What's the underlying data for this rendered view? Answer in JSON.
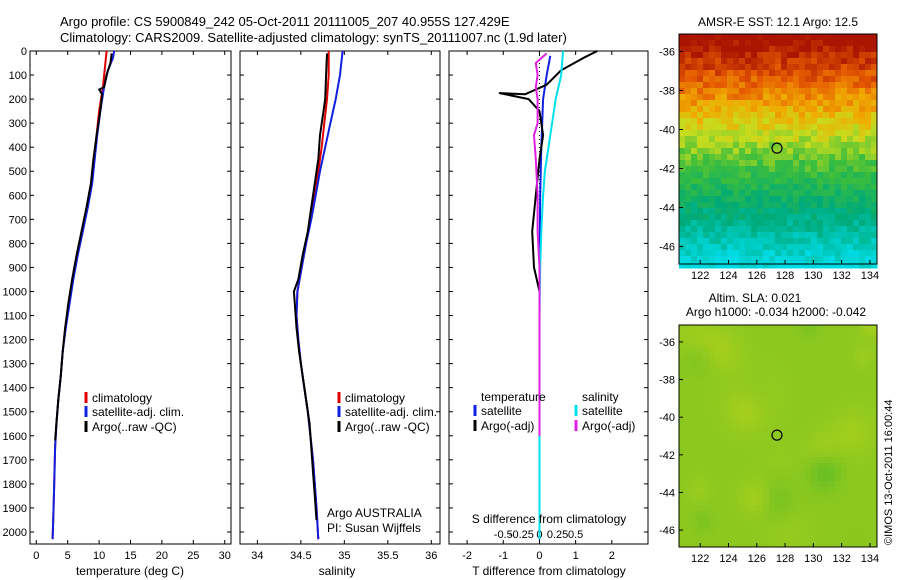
{
  "header": {
    "line1": "Argo profile: CS 5900849_242 05-Oct-2011 20111005_207 40.955S 127.429E",
    "line2": "Climatology: CARS2009. Satellite-adjusted climatology: synTS_20111007.nc (1.9d later)"
  },
  "colors": {
    "climatology": "#e00000",
    "satellite": "#1020e0",
    "argo": "#000000",
    "satellite_salinity": "#00e0f0",
    "argo_salinity": "#e020e0"
  },
  "chart_data": [
    {
      "type": "line",
      "name": "temperature-profile",
      "xlabel": "temperature (deg C)",
      "xlim": [
        -1,
        31
      ],
      "xticks": [
        0,
        5,
        10,
        15,
        20,
        25,
        30
      ],
      "ylim": [
        0,
        2050
      ],
      "yticks": [
        0,
        100,
        200,
        300,
        400,
        500,
        600,
        700,
        800,
        900,
        1000,
        1100,
        1200,
        1300,
        1400,
        1500,
        1600,
        1700,
        1800,
        1900,
        2000
      ],
      "legend": [
        "climatology",
        "satellite-adj. clim.",
        "Argo(..raw -QC)"
      ],
      "legend_position": "lower-middle",
      "series": [
        {
          "name": "climatology",
          "color": "#e00000",
          "points": [
            [
              11.2,
              0
            ],
            [
              11.0,
              50
            ],
            [
              10.6,
              150
            ],
            [
              10.0,
              250
            ],
            [
              9.6,
              350
            ],
            [
              9.2,
              450
            ],
            [
              8.8,
              550
            ],
            [
              8.1,
              650
            ],
            [
              7.3,
              750
            ],
            [
              6.5,
              850
            ],
            [
              5.8,
              950
            ],
            [
              5.2,
              1050
            ],
            [
              4.6,
              1150
            ],
            [
              4.2,
              1250
            ],
            [
              3.9,
              1350
            ],
            [
              3.5,
              1450
            ],
            [
              3.2,
              1550
            ],
            [
              3.0,
              1650
            ],
            [
              2.9,
              1750
            ],
            [
              2.8,
              1850
            ],
            [
              2.7,
              1950
            ],
            [
              2.6,
              2030
            ]
          ]
        },
        {
          "name": "satellite-adj. clim.",
          "color": "#1020e0",
          "points": [
            [
              12.4,
              0
            ],
            [
              12.2,
              30
            ],
            [
              11.4,
              80
            ],
            [
              10.8,
              150
            ],
            [
              10.2,
              250
            ],
            [
              9.7,
              350
            ],
            [
              9.3,
              450
            ],
            [
              8.9,
              550
            ],
            [
              8.2,
              650
            ],
            [
              7.4,
              750
            ],
            [
              6.6,
              850
            ],
            [
              5.9,
              950
            ],
            [
              5.3,
              1050
            ],
            [
              4.7,
              1150
            ],
            [
              4.2,
              1250
            ],
            [
              3.9,
              1350
            ],
            [
              3.5,
              1450
            ],
            [
              3.2,
              1550
            ],
            [
              3.0,
              1650
            ],
            [
              2.9,
              1750
            ],
            [
              2.8,
              1850
            ],
            [
              2.7,
              1950
            ],
            [
              2.6,
              2030
            ]
          ]
        },
        {
          "name": "Argo(..raw -QC)",
          "color": "#000000",
          "points": [
            [
              12.0,
              10
            ],
            [
              11.8,
              50
            ],
            [
              11.2,
              100
            ],
            [
              10.8,
              150
            ],
            [
              10.0,
              160
            ],
            [
              10.5,
              180
            ],
            [
              10.2,
              250
            ],
            [
              9.6,
              350
            ],
            [
              9.1,
              450
            ],
            [
              8.7,
              550
            ],
            [
              8.0,
              650
            ],
            [
              7.2,
              750
            ],
            [
              6.4,
              850
            ],
            [
              5.7,
              950
            ],
            [
              5.1,
              1050
            ],
            [
              4.6,
              1150
            ],
            [
              4.2,
              1250
            ],
            [
              3.9,
              1350
            ],
            [
              3.5,
              1450
            ],
            [
              3.2,
              1550
            ],
            [
              3.0,
              1620
            ]
          ]
        }
      ]
    },
    {
      "type": "line",
      "name": "salinity-profile",
      "xlabel": "salinity",
      "xlim": [
        33.8,
        36.1
      ],
      "xticks": [
        34,
        34.5,
        35,
        35.5,
        36
      ],
      "ylim": [
        0,
        2050
      ],
      "legend": [
        "climatology",
        "satellite-adj. clim.",
        "Argo(..raw -QC)"
      ],
      "legend_position": "lower-right",
      "annotation": [
        "Argo AUSTRALIA",
        "PI: Susan Wijffels"
      ],
      "series": [
        {
          "name": "climatology",
          "color": "#e00000",
          "points": [
            [
              34.82,
              0
            ],
            [
              34.82,
              100
            ],
            [
              34.8,
              200
            ],
            [
              34.77,
              300
            ],
            [
              34.74,
              400
            ],
            [
              34.7,
              500
            ],
            [
              34.66,
              600
            ],
            [
              34.61,
              700
            ],
            [
              34.56,
              800
            ],
            [
              34.51,
              900
            ],
            [
              34.46,
              1000
            ],
            [
              34.45,
              1100
            ],
            [
              34.47,
              1200
            ],
            [
              34.5,
              1300
            ],
            [
              34.54,
              1400
            ],
            [
              34.58,
              1500
            ],
            [
              34.61,
              1600
            ],
            [
              34.64,
              1700
            ],
            [
              34.66,
              1800
            ],
            [
              34.68,
              1900
            ],
            [
              34.7,
              2030
            ]
          ]
        },
        {
          "name": "satellite-adj. clim.",
          "color": "#1020e0",
          "points": [
            [
              34.98,
              0
            ],
            [
              34.95,
              100
            ],
            [
              34.9,
              200
            ],
            [
              34.84,
              300
            ],
            [
              34.78,
              400
            ],
            [
              34.72,
              500
            ],
            [
              34.67,
              600
            ],
            [
              34.62,
              700
            ],
            [
              34.56,
              800
            ],
            [
              34.51,
              900
            ],
            [
              34.46,
              1000
            ],
            [
              34.45,
              1100
            ],
            [
              34.47,
              1200
            ],
            [
              34.5,
              1300
            ],
            [
              34.54,
              1400
            ],
            [
              34.58,
              1500
            ],
            [
              34.61,
              1600
            ],
            [
              34.64,
              1700
            ],
            [
              34.66,
              1800
            ],
            [
              34.68,
              1900
            ],
            [
              34.7,
              2030
            ]
          ]
        },
        {
          "name": "Argo(..raw -QC)",
          "color": "#000000",
          "points": [
            [
              34.8,
              10
            ],
            [
              34.79,
              100
            ],
            [
              34.78,
              200
            ],
            [
              34.76,
              250
            ],
            [
              34.72,
              350
            ],
            [
              34.7,
              450
            ],
            [
              34.66,
              550
            ],
            [
              34.62,
              650
            ],
            [
              34.58,
              750
            ],
            [
              34.52,
              850
            ],
            [
              34.47,
              950
            ],
            [
              34.42,
              1000
            ],
            [
              34.43,
              1050
            ],
            [
              34.45,
              1150
            ],
            [
              34.48,
              1250
            ],
            [
              34.52,
              1350
            ],
            [
              34.56,
              1450
            ],
            [
              34.6,
              1550
            ],
            [
              34.62,
              1650
            ],
            [
              34.64,
              1750
            ],
            [
              34.66,
              1850
            ],
            [
              34.68,
              1950
            ]
          ]
        }
      ]
    },
    {
      "type": "line",
      "name": "difference-profile",
      "xlabel": "T difference from climatology",
      "xlabel2": "S difference from climatology",
      "xlim": [
        -2.5,
        3.0
      ],
      "xticks": [
        -2,
        -1,
        0,
        1,
        2
      ],
      "xticks_top": [
        -0.5,
        -0.25,
        0,
        0.25,
        0.5
      ],
      "ylim": [
        0,
        2050
      ],
      "legend": [
        "temperature",
        "satellite",
        "Argo(-adj)",
        "salinity",
        "satellite",
        "Argo(-adj)"
      ],
      "legend_position": "lower",
      "series": [
        {
          "name": "temperature satellite",
          "color": "#1020e0",
          "points": [
            [
              0.3,
              20
            ],
            [
              0.2,
              100
            ],
            [
              0.1,
              200
            ],
            [
              0.05,
              400
            ],
            [
              0.02,
              600
            ],
            [
              0.0,
              900
            ],
            [
              0.0,
              1100
            ],
            [
              0.0,
              1500
            ],
            [
              0.0,
              2030
            ]
          ]
        },
        {
          "name": "temperature Argo(-adj)",
          "color": "#000000",
          "points": [
            [
              1.6,
              0
            ],
            [
              1.2,
              30
            ],
            [
              0.6,
              80
            ],
            [
              0.2,
              140
            ],
            [
              -0.4,
              180
            ],
            [
              -1.1,
              175
            ],
            [
              -0.3,
              200
            ],
            [
              0.0,
              250
            ],
            [
              0.1,
              350
            ],
            [
              0.0,
              450
            ],
            [
              -0.1,
              600
            ],
            [
              -0.2,
              750
            ],
            [
              -0.15,
              900
            ],
            [
              0.0,
              1000
            ],
            [
              0.0,
              1200
            ],
            [
              0.0,
              1400
            ],
            [
              0.0,
              1600
            ]
          ]
        },
        {
          "name": "salinity satellite",
          "color": "#00e0f0",
          "points": [
            [
              0.65,
              0
            ],
            [
              0.6,
              100
            ],
            [
              0.45,
              200
            ],
            [
              0.35,
              300
            ],
            [
              0.25,
              400
            ],
            [
              0.15,
              500
            ],
            [
              0.1,
              600
            ],
            [
              0.05,
              750
            ],
            [
              0.02,
              900
            ],
            [
              0.0,
              1100
            ],
            [
              0.0,
              1500
            ],
            [
              0.0,
              2030
            ]
          ]
        },
        {
          "name": "salinity Argo(-adj)",
          "color": "#e020e0",
          "points": [
            [
              0.2,
              10
            ],
            [
              -0.1,
              50
            ],
            [
              -0.05,
              100
            ],
            [
              -0.1,
              150
            ],
            [
              -0.05,
              200
            ],
            [
              -0.05,
              300
            ],
            [
              -0.15,
              350
            ],
            [
              -0.1,
              450
            ],
            [
              -0.05,
              600
            ],
            [
              -0.05,
              750
            ],
            [
              0.0,
              900
            ],
            [
              0.0,
              1100
            ],
            [
              0.0,
              1400
            ],
            [
              0.0,
              1600
            ]
          ]
        }
      ]
    },
    {
      "type": "heatmap",
      "name": "sst-map",
      "title": "AMSR-E SST: 12.1  Argo: 12.5",
      "xticks": [
        122,
        124,
        126,
        128,
        130,
        132,
        134
      ],
      "yticks": [
        -36,
        -38,
        -40,
        -42,
        -44,
        -46
      ],
      "xlim": [
        120.5,
        134.5
      ],
      "ylim": [
        -46.9,
        -35.1
      ],
      "marker": [
        127.429,
        -40.955
      ]
    },
    {
      "type": "heatmap",
      "name": "sla-map",
      "title_line1": "Altim. SLA: 0.021",
      "title_line2": "Argo h1000: -0.034 h2000: -0.042",
      "xticks": [
        122,
        124,
        126,
        128,
        130,
        132,
        134
      ],
      "yticks": [
        -36,
        -38,
        -40,
        -42,
        -44,
        -46
      ],
      "xlim": [
        120.5,
        134.5
      ],
      "ylim": [
        -46.9,
        -35.1
      ],
      "marker": [
        127.429,
        -40.955
      ]
    }
  ],
  "annotations": {
    "argo_australia": "Argo AUSTRALIA",
    "pi": "PI: Susan Wijffels",
    "s_diff_label": "S difference from climatology",
    "imos_stamp": "©IMOS 13-Oct-2011 16:00:44"
  },
  "legend_temp_salt": [
    "climatology",
    "satellite-adj. clim.",
    "Argo(..raw -QC)"
  ],
  "legend_diff": {
    "temperature_header": "temperature",
    "salinity_header": "salinity",
    "satellite": "satellite",
    "argo_adj": "Argo(-adj)"
  }
}
